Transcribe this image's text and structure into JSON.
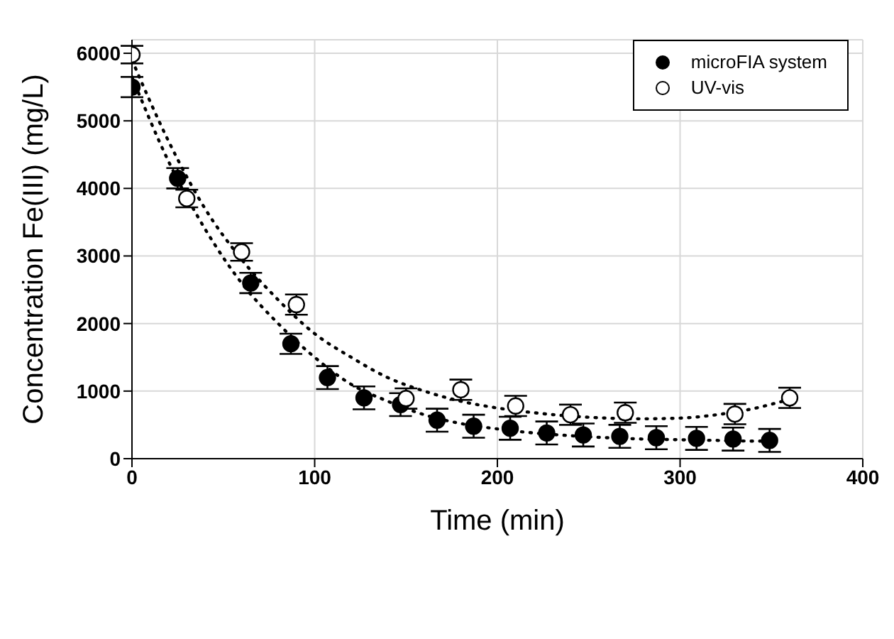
{
  "chart_data": {
    "type": "scatter",
    "xlabel": "Time (min)",
    "ylabel": "Concentration Fe(III) (mg/L)",
    "xlim": [
      0,
      400
    ],
    "xticks": [
      0,
      100,
      200,
      300,
      400
    ],
    "ylim": [
      0,
      6200
    ],
    "yticks": [
      0,
      1000,
      2000,
      3000,
      4000,
      5000,
      6000
    ],
    "grid": true,
    "legend": "top right",
    "marker": "circle",
    "series": [
      {
        "name": "microFIA system",
        "color": "#000000",
        "x": [
          0,
          25,
          65,
          87,
          107,
          127,
          147,
          167,
          187,
          207,
          227,
          247,
          267,
          287,
          309,
          329,
          349
        ],
        "values": [
          5500,
          4150,
          2600,
          1700,
          1200,
          900,
          800,
          570,
          480,
          450,
          380,
          350,
          330,
          310,
          300,
          290,
          270
        ],
        "errors": [
          150,
          150,
          150,
          150,
          170,
          170,
          170,
          170,
          170,
          170,
          170,
          170,
          170,
          170,
          170,
          170,
          170
        ]
      },
      {
        "name": "UV-vis",
        "color": "#ffffff",
        "x": [
          0,
          30,
          60,
          90,
          150,
          180,
          210,
          240,
          270,
          330,
          360
        ],
        "values": [
          5980,
          3850,
          3060,
          2280,
          890,
          1020,
          780,
          650,
          680,
          660,
          900
        ],
        "errors": [
          130,
          130,
          130,
          150,
          150,
          150,
          150,
          150,
          150,
          150,
          150
        ]
      },
      {
        "type": "line",
        "color": "#000000",
        "line_style": "dotted",
        "marker": "none",
        "x": [
          0,
          20,
          40,
          60,
          80,
          100,
          120,
          140,
          160,
          180,
          200,
          220,
          240,
          260,
          280,
          300,
          320,
          340,
          350
        ],
        "values": [
          5650,
          4400,
          3400,
          2600,
          2000,
          1500,
          1100,
          850,
          650,
          520,
          440,
          380,
          340,
          310,
          290,
          280,
          270,
          260,
          260
        ]
      },
      {
        "type": "line",
        "color": "#000000",
        "line_style": "dotted",
        "marker": "none",
        "x": [
          0,
          20,
          40,
          60,
          80,
          100,
          120,
          140,
          160,
          180,
          200,
          220,
          240,
          260,
          280,
          300,
          320,
          340,
          360
        ],
        "values": [
          5900,
          4700,
          3700,
          2950,
          2350,
          1850,
          1500,
          1200,
          1000,
          850,
          750,
          680,
          630,
          600,
          590,
          600,
          650,
          740,
          880
        ]
      }
    ]
  }
}
